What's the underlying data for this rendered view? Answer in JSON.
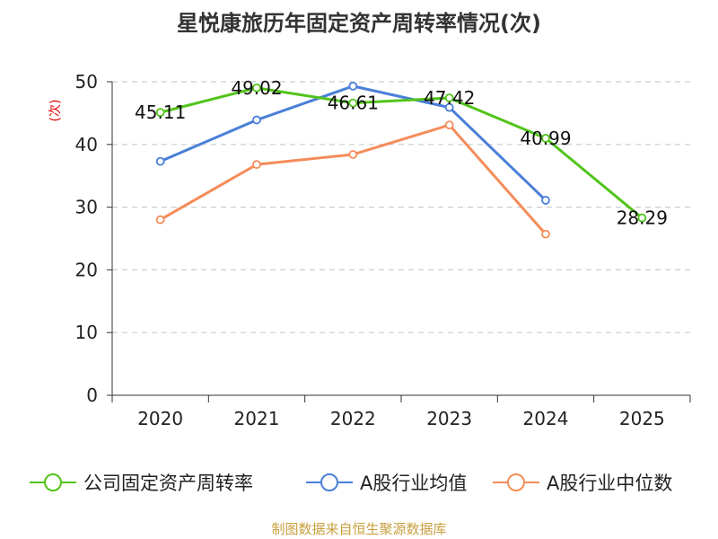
{
  "chart_data": {
    "type": "line",
    "title": "星悦康旅历年固定资产周转率情况(次)",
    "ylabel": "(次)",
    "xlabel": "",
    "categories": [
      "2020",
      "2021",
      "2022",
      "2023",
      "2024",
      "2025"
    ],
    "ylim": [
      0,
      50
    ],
    "yticks": [
      0,
      10,
      20,
      30,
      40,
      50
    ],
    "grid": true,
    "legend_position": "bottom",
    "series": [
      {
        "name": "公司固定资产周转率",
        "color": "#52c41a",
        "values": [
          45.11,
          49.02,
          46.61,
          47.42,
          40.99,
          28.29
        ],
        "show_labels": true
      },
      {
        "name": "A股行业均值",
        "color": "#4a7fd8",
        "values": [
          37.3,
          43.9,
          49.3,
          45.9,
          31.1,
          null
        ],
        "show_labels": false
      },
      {
        "name": "A股行业中位数",
        "color": "#f58c5a",
        "values": [
          28.0,
          36.8,
          38.4,
          43.1,
          25.7,
          null
        ],
        "show_labels": false
      }
    ],
    "source": "制图数据来自恒生聚源数据库"
  }
}
